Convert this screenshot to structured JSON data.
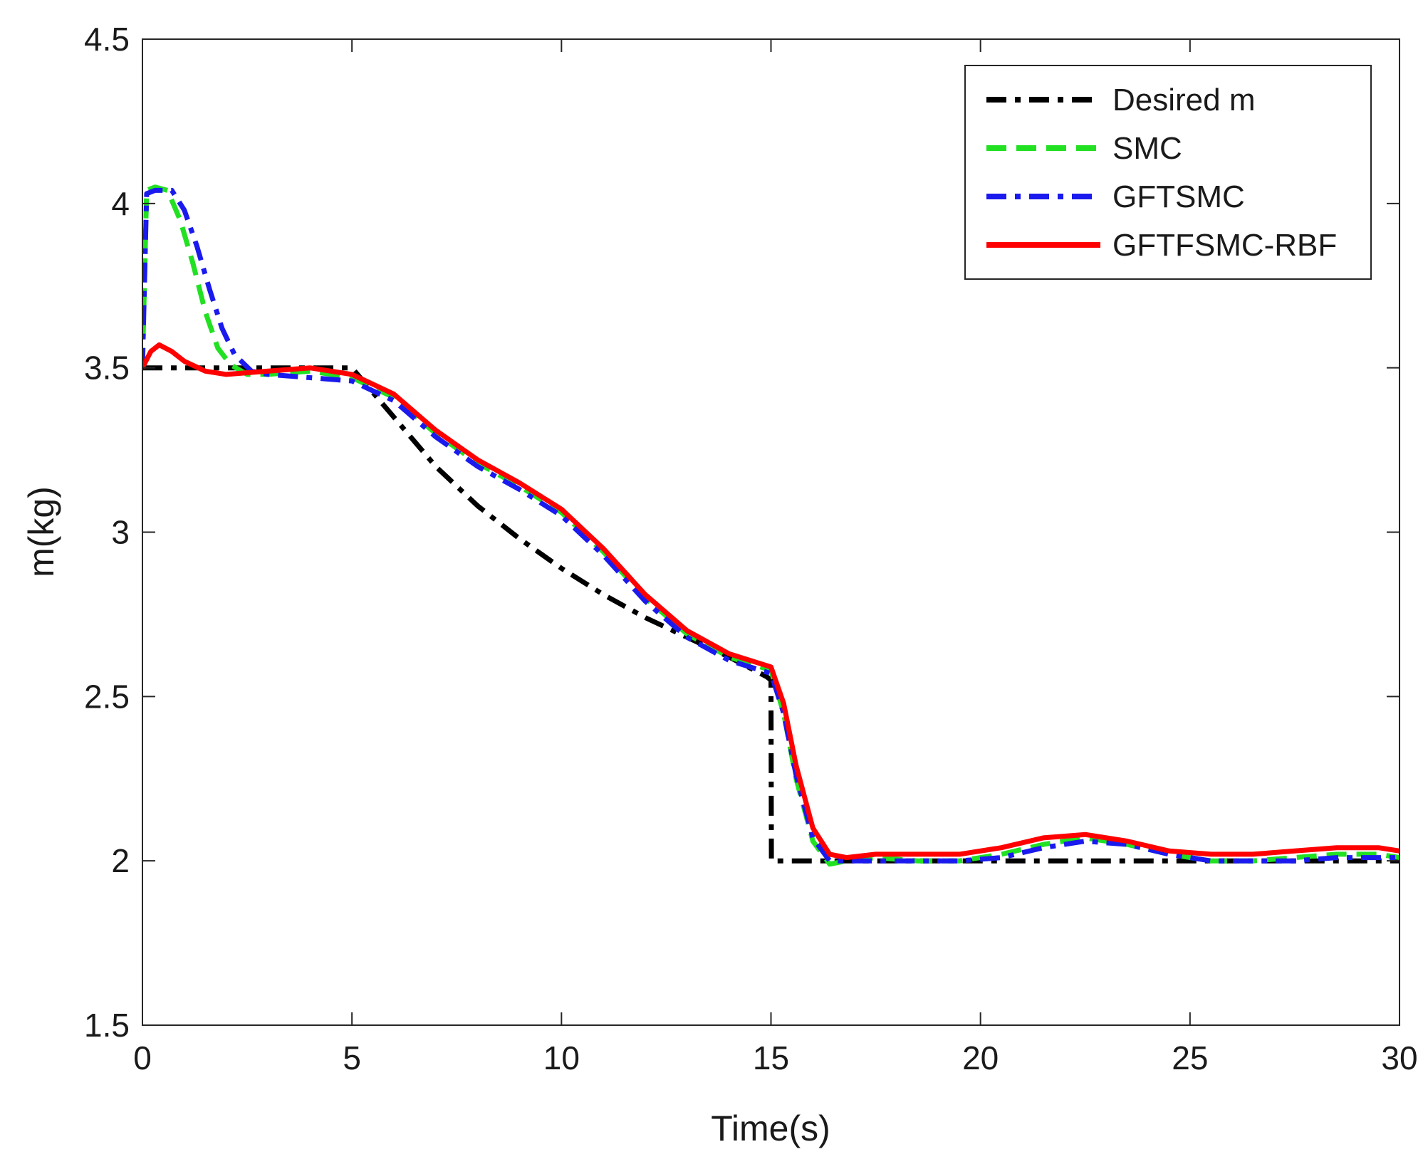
{
  "chart_data": {
    "type": "line",
    "title": "",
    "xlabel": "Time(s)",
    "ylabel": "m(kg)",
    "xlim": [
      0,
      30
    ],
    "ylim": [
      1.5,
      4.5
    ],
    "xticks": [
      0,
      5,
      10,
      15,
      20,
      25,
      30
    ],
    "yticks": [
      1.5,
      2,
      2.5,
      3,
      3.5,
      4,
      4.5
    ],
    "xtick_labels": [
      "0",
      "5",
      "10",
      "15",
      "20",
      "25",
      "30"
    ],
    "ytick_labels": [
      "1.5",
      "2",
      "2.5",
      "3",
      "3.5",
      "4",
      "4.5"
    ],
    "grid": false,
    "legend_position": "top-right",
    "series": [
      {
        "name": "Desired m",
        "color": "#000000",
        "style": "dash-dot",
        "x": [
          0,
          5,
          6,
          7,
          8,
          9,
          10,
          11,
          12,
          13,
          14,
          14.9,
          15,
          15.01,
          30
        ],
        "y": [
          3.5,
          3.5,
          3.35,
          3.2,
          3.08,
          2.98,
          2.89,
          2.81,
          2.74,
          2.68,
          2.62,
          2.56,
          2.55,
          2.0,
          2.0
        ]
      },
      {
        "name": "SMC",
        "color": "#22e022",
        "style": "dashed",
        "x": [
          0,
          0.1,
          0.3,
          0.6,
          0.9,
          1.2,
          1.5,
          1.8,
          2.1,
          2.5,
          3,
          4,
          5,
          6,
          7,
          8,
          9,
          10,
          11,
          12,
          13,
          14,
          15,
          15.3,
          15.6,
          16,
          16.4,
          16.8,
          17.5,
          18.5,
          19.5,
          20.5,
          21.5,
          22.5,
          23.5,
          24.5,
          25.5,
          26.5,
          27.5,
          28.5,
          29.5,
          30
        ],
        "y": [
          3.5,
          4.04,
          4.05,
          4.04,
          3.95,
          3.82,
          3.67,
          3.56,
          3.51,
          3.48,
          3.48,
          3.49,
          3.47,
          3.41,
          3.3,
          3.21,
          3.14,
          3.06,
          2.94,
          2.8,
          2.69,
          2.62,
          2.58,
          2.45,
          2.25,
          2.06,
          1.99,
          2.0,
          2.01,
          2.0,
          2.0,
          2.02,
          2.05,
          2.07,
          2.05,
          2.02,
          2.0,
          2.0,
          2.01,
          2.02,
          2.02,
          2.01
        ]
      },
      {
        "name": "GFTSMC",
        "color": "#1a1aee",
        "style": "dash-dot",
        "x": [
          0,
          0.1,
          0.3,
          0.7,
          1.0,
          1.3,
          1.6,
          1.9,
          2.2,
          2.6,
          3,
          4,
          5,
          6,
          7,
          8,
          9,
          10,
          11,
          12,
          13,
          14,
          15,
          15.3,
          15.6,
          16,
          16.4,
          16.8,
          17.5,
          18.5,
          19.5,
          20.5,
          21.5,
          22.5,
          23.5,
          24.5,
          25.5,
          26.5,
          27.5,
          28.5,
          29.5,
          30
        ],
        "y": [
          3.5,
          4.03,
          4.04,
          4.04,
          3.98,
          3.87,
          3.74,
          3.62,
          3.54,
          3.49,
          3.48,
          3.47,
          3.46,
          3.4,
          3.29,
          3.2,
          3.13,
          3.05,
          2.93,
          2.79,
          2.68,
          2.61,
          2.57,
          2.45,
          2.26,
          2.07,
          2.0,
          2.0,
          2.0,
          2.0,
          2.0,
          2.01,
          2.04,
          2.06,
          2.05,
          2.02,
          2.0,
          2.0,
          2.0,
          2.01,
          2.01,
          2.01
        ]
      },
      {
        "name": "GFTFSMC-RBF",
        "color": "#ff0000",
        "style": "solid",
        "x": [
          0,
          0.2,
          0.4,
          0.7,
          1.0,
          1.5,
          2,
          3,
          4,
          5,
          6,
          7,
          8,
          9,
          10,
          11,
          12,
          13,
          14,
          15,
          15.3,
          15.6,
          16,
          16.4,
          16.8,
          17.5,
          18.5,
          19.5,
          20.5,
          21.5,
          22.5,
          23.5,
          24.5,
          25.5,
          26.5,
          27.5,
          28.5,
          29.5,
          30
        ],
        "y": [
          3.5,
          3.55,
          3.57,
          3.55,
          3.52,
          3.49,
          3.48,
          3.49,
          3.5,
          3.48,
          3.42,
          3.31,
          3.22,
          3.15,
          3.07,
          2.95,
          2.81,
          2.7,
          2.63,
          2.59,
          2.48,
          2.29,
          2.1,
          2.02,
          2.01,
          2.02,
          2.02,
          2.02,
          2.04,
          2.07,
          2.08,
          2.06,
          2.03,
          2.02,
          2.02,
          2.03,
          2.04,
          2.04,
          2.03
        ]
      }
    ]
  }
}
